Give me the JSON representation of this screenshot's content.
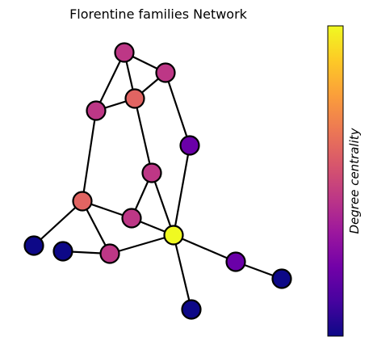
{
  "title": "Florentine families Network",
  "colorbar": {
    "label": "Degree centrality",
    "colormap": "plasma",
    "stops": [
      "#0d0887",
      "#46039f",
      "#7201a8",
      "#9c179e",
      "#bd3786",
      "#d8576b",
      "#ed7953",
      "#fb9f3a",
      "#fdca26",
      "#f0f921"
    ]
  },
  "nodes": [
    {
      "id": "n1",
      "color": "#bd3786"
    },
    {
      "id": "n2",
      "color": "#bd3786"
    },
    {
      "id": "n3",
      "color": "#bd3786"
    },
    {
      "id": "n4",
      "color": "#e16462"
    },
    {
      "id": "n5",
      "color": "#6a00a8"
    },
    {
      "id": "n6",
      "color": "#bd3786"
    },
    {
      "id": "n7",
      "color": "#e16462"
    },
    {
      "id": "n8",
      "color": "#bd3786"
    },
    {
      "id": "n9",
      "color": "#f0f921"
    },
    {
      "id": "n10",
      "color": "#0d0887"
    },
    {
      "id": "n11",
      "color": "#0d0887"
    },
    {
      "id": "n12",
      "color": "#bd3786"
    },
    {
      "id": "n13",
      "color": "#6a00a8"
    },
    {
      "id": "n14",
      "color": "#0d0887"
    },
    {
      "id": "n15",
      "color": "#0d0887"
    }
  ],
  "edges": [
    [
      "n1",
      "n2"
    ],
    [
      "n1",
      "n3"
    ],
    [
      "n1",
      "n4"
    ],
    [
      "n2",
      "n4"
    ],
    [
      "n2",
      "n5"
    ],
    [
      "n3",
      "n4"
    ],
    [
      "n3",
      "n7"
    ],
    [
      "n4",
      "n6"
    ],
    [
      "n6",
      "n8"
    ],
    [
      "n6",
      "n9"
    ],
    [
      "n5",
      "n9"
    ],
    [
      "n7",
      "n8"
    ],
    [
      "n7",
      "n10"
    ],
    [
      "n7",
      "n12"
    ],
    [
      "n8",
      "n9"
    ],
    [
      "n11",
      "n12"
    ],
    [
      "n12",
      "n9"
    ],
    [
      "n9",
      "n13"
    ],
    [
      "n13",
      "n15"
    ],
    [
      "n9",
      "n14"
    ]
  ]
}
